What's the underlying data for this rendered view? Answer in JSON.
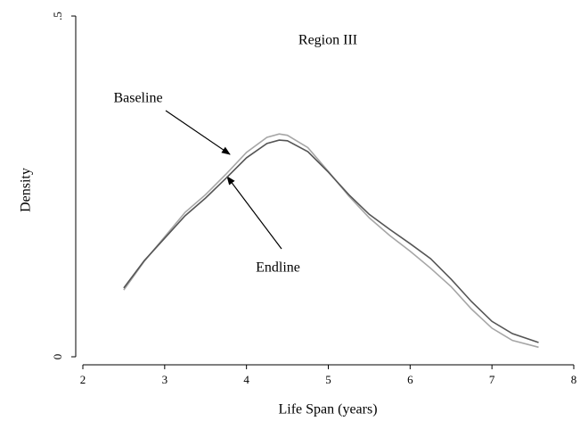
{
  "chart_data": {
    "type": "line",
    "title": "Region III",
    "xlabel": "Life Span (years)",
    "ylabel": "Density",
    "annotations": [
      "Baseline",
      "Endline"
    ],
    "x": [
      2.5,
      2.75,
      3,
      3.25,
      3.5,
      3.75,
      4,
      4.25,
      4.4,
      4.5,
      4.75,
      5,
      5.25,
      5.5,
      5.75,
      6,
      6.25,
      6.5,
      6.75,
      7,
      7.25,
      7.57
    ],
    "series": [
      {
        "name": "Baseline",
        "color": "#a6a6a6",
        "values": [
          0.098,
          0.14,
          0.176,
          0.212,
          0.238,
          0.268,
          0.3,
          0.322,
          0.327,
          0.325,
          0.307,
          0.272,
          0.236,
          0.204,
          0.178,
          0.155,
          0.13,
          0.103,
          0.07,
          0.042,
          0.024,
          0.014
        ]
      },
      {
        "name": "Endline",
        "color": "#555555",
        "values": [
          0.101,
          0.141,
          0.174,
          0.207,
          0.233,
          0.262,
          0.292,
          0.313,
          0.318,
          0.317,
          0.301,
          0.271,
          0.238,
          0.209,
          0.187,
          0.166,
          0.144,
          0.114,
          0.081,
          0.052,
          0.034,
          0.021
        ]
      }
    ],
    "xlim": [
      2,
      8
    ],
    "xticks": [
      2,
      3,
      4,
      5,
      6,
      7,
      8
    ],
    "ylim": [
      0,
      0.5
    ],
    "yticks": [
      0,
      {
        "value": 0.5,
        "label": ".5"
      }
    ],
    "grid": false
  }
}
